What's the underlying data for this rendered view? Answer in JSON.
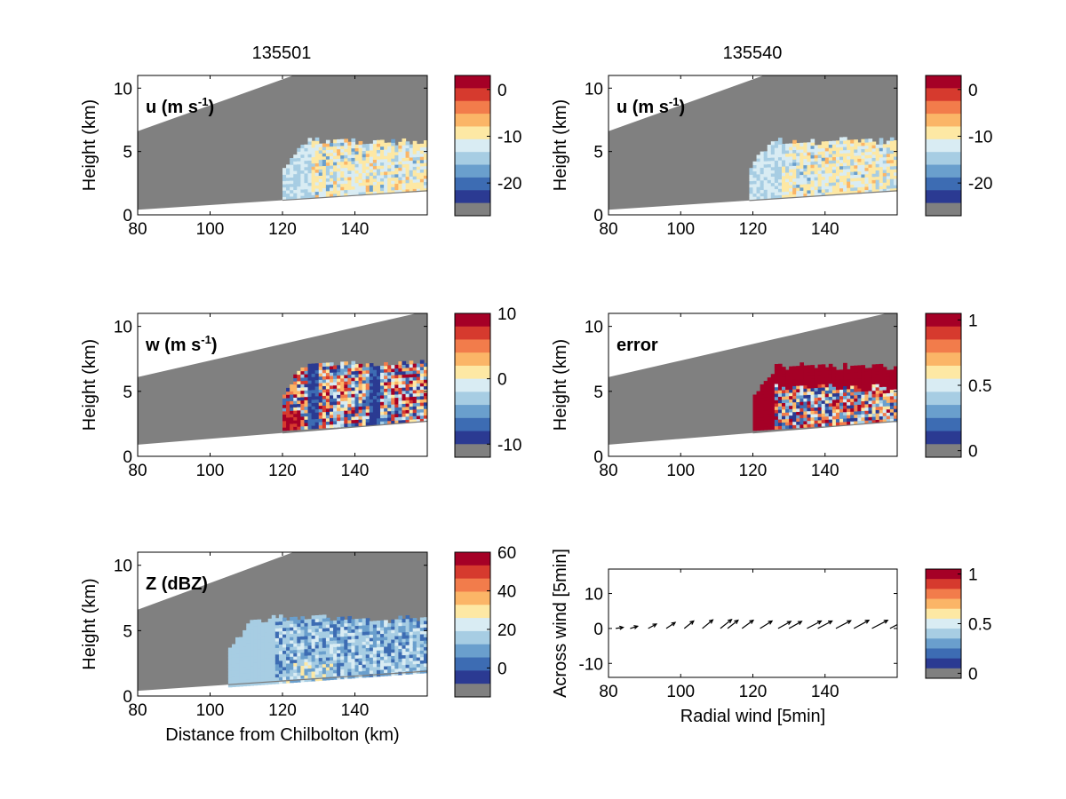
{
  "figure": {
    "columns": [
      {
        "title": "135501"
      },
      {
        "title": "135540"
      }
    ]
  },
  "colors": {
    "background_gray": "#808080",
    "colormap": [
      "#2b3a92",
      "#3d6cb3",
      "#6a9fcd",
      "#a7cde3",
      "#d9ecf3",
      "#fde8a4",
      "#fbb567",
      "#f27c4b",
      "#d63a2e",
      "#a50026"
    ]
  },
  "chart_data": [
    {
      "id": "u-135501",
      "type": "heatmap",
      "panel_label": "u (m s",
      "panel_label_sup": "-1",
      "xlim": [
        80,
        160
      ],
      "ylim": [
        0,
        11
      ],
      "xticks": [
        80,
        100,
        120,
        140
      ],
      "yticks": [
        0,
        5,
        10
      ],
      "xlabel": "",
      "ylabel": "Height (km)",
      "colorbar": {
        "ticks": [
          0,
          -10,
          -20
        ],
        "range": [
          -27,
          3
        ]
      },
      "domain": {
        "data_start_km": 120,
        "data_top_km": 5.7,
        "data_base_start_km": 1.2,
        "data_base_end_km": 1.9
      }
    },
    {
      "id": "u-135540",
      "type": "heatmap",
      "panel_label": "u (m s",
      "panel_label_sup": "-1",
      "xlim": [
        80,
        160
      ],
      "ylim": [
        0,
        11
      ],
      "xticks": [
        80,
        100,
        120,
        140
      ],
      "yticks": [
        0,
        5,
        10
      ],
      "xlabel": "",
      "ylabel": "Height (km)",
      "colorbar": {
        "ticks": [
          0,
          -10,
          -20
        ],
        "range": [
          -27,
          3
        ]
      },
      "domain": {
        "data_start_km": 119,
        "data_top_km": 5.7,
        "data_base_start_km": 1.2,
        "data_base_end_km": 1.9
      }
    },
    {
      "id": "w-135501",
      "type": "heatmap",
      "panel_label": "w (m s",
      "panel_label_sup": "-1",
      "xlim": [
        80,
        160
      ],
      "ylim": [
        0,
        11
      ],
      "xticks": [
        80,
        100,
        120,
        140
      ],
      "yticks": [
        0,
        5,
        10
      ],
      "xlabel": "",
      "ylabel": "Height (km)",
      "colorbar": {
        "ticks": [
          10,
          0,
          -10
        ],
        "range": [
          -12,
          10
        ]
      },
      "domain": {
        "data_start_km": 120,
        "data_top_km": 7.0,
        "data_base_start_km": 2.0,
        "data_base_end_km": 2.7
      }
    },
    {
      "id": "error-135540",
      "type": "heatmap",
      "panel_label": "error",
      "panel_label_sup": "",
      "xlim": [
        80,
        160
      ],
      "ylim": [
        0,
        11
      ],
      "xticks": [
        80,
        100,
        120,
        140
      ],
      "yticks": [
        0,
        5,
        10
      ],
      "xlabel": "",
      "ylabel": "Height (km)",
      "colorbar": {
        "ticks": [
          1,
          0.5,
          0
        ],
        "range": [
          -0.05,
          1.05
        ]
      },
      "domain": {
        "data_start_km": 120,
        "data_top_km": 6.8,
        "data_base_start_km": 2.0,
        "data_base_end_km": 2.7
      }
    },
    {
      "id": "z-135501",
      "type": "heatmap",
      "panel_label": "Z (dBZ)",
      "panel_label_sup": "",
      "xlim": [
        80,
        160
      ],
      "ylim": [
        0,
        11
      ],
      "xticks": [
        80,
        100,
        120,
        140
      ],
      "yticks": [
        0,
        5,
        10
      ],
      "xlabel": "Distance from Chilbolton (km)",
      "ylabel": "Height (km)",
      "colorbar": {
        "ticks": [
          60,
          40,
          20,
          0
        ],
        "range": [
          -15,
          60
        ]
      },
      "domain": {
        "data_start_km": 105,
        "data_top_km": 5.8,
        "data_base_start_km": 0.7,
        "data_base_end_km": 1.8
      }
    },
    {
      "id": "wind-vectors",
      "type": "scatter",
      "panel_label": "",
      "panel_label_sup": "",
      "xlim": [
        80,
        160
      ],
      "ylim": [
        -14,
        17
      ],
      "xticks": [
        80,
        100,
        120,
        140
      ],
      "yticks": [
        10,
        0,
        -10
      ],
      "xlabel": "Radial wind [5min]",
      "ylabel": "Across wind [5min]",
      "colorbar": {
        "ticks": [
          1,
          0.5,
          0
        ],
        "range": [
          -0.05,
          1.05
        ]
      },
      "vectors": [
        {
          "x": 82,
          "u": 2,
          "v": 0.3
        },
        {
          "x": 86,
          "u": 2,
          "v": 0.6
        },
        {
          "x": 91,
          "u": 2.2,
          "v": 1.2
        },
        {
          "x": 96,
          "u": 2.4,
          "v": 1.6
        },
        {
          "x": 101,
          "u": 2.5,
          "v": 2.0
        },
        {
          "x": 106,
          "u": 2.8,
          "v": 2.3
        },
        {
          "x": 111,
          "u": 3.0,
          "v": 2.4
        },
        {
          "x": 113,
          "u": 2.8,
          "v": 2.2
        },
        {
          "x": 117,
          "u": 3.0,
          "v": 2.2
        },
        {
          "x": 122,
          "u": 3.2,
          "v": 2.0
        },
        {
          "x": 127,
          "u": 3.4,
          "v": 1.9
        },
        {
          "x": 130,
          "u": 3.4,
          "v": 1.9
        },
        {
          "x": 135,
          "u": 3.8,
          "v": 2.0
        },
        {
          "x": 138,
          "u": 3.8,
          "v": 2.0
        },
        {
          "x": 143,
          "u": 4.0,
          "v": 2.1
        },
        {
          "x": 148,
          "u": 4.0,
          "v": 2.2
        },
        {
          "x": 153,
          "u": 4.2,
          "v": 2.2
        },
        {
          "x": 158,
          "u": 4.5,
          "v": 2.4
        }
      ]
    }
  ]
}
